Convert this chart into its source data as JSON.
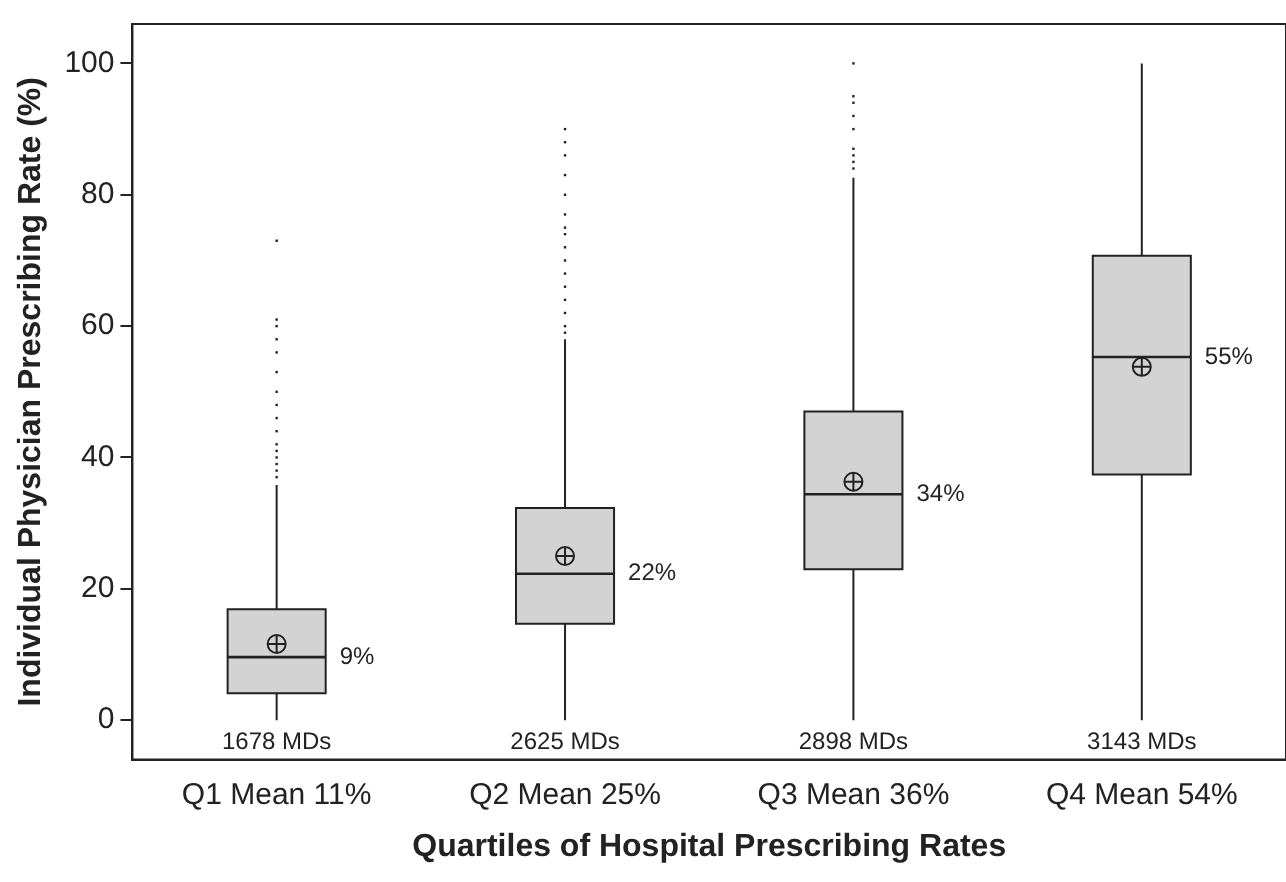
{
  "chart_data": {
    "type": "box",
    "xlabel": "Quartiles of Hospital Prescribing Rates",
    "ylabel": "Individual Physician Prescribing Rate (%)",
    "categories": [
      "Q1 Mean 11%",
      "Q2 Mean 25%",
      "Q3 Mean 36%",
      "Q4 Mean 54%"
    ],
    "boxes": [
      {
        "low": 0,
        "q1": 4.1,
        "median": 9.6,
        "q3": 16.9,
        "high": 35.8,
        "mean": 11.6,
        "outliers": [
          37,
          38,
          39,
          40,
          41,
          42,
          44,
          46,
          48,
          50,
          53,
          56,
          58,
          60,
          61,
          73
        ]
      },
      {
        "low": 0,
        "q1": 14.7,
        "median": 22.3,
        "q3": 32.3,
        "high": 58,
        "mean": 25,
        "outliers": [
          59,
          60,
          62,
          64,
          66,
          68,
          70,
          72,
          74,
          75,
          77,
          80,
          83,
          86,
          88,
          90
        ]
      },
      {
        "low": 0,
        "q1": 23,
        "median": 34.4,
        "q3": 47,
        "high": 82.6,
        "mean": 36.3,
        "outliers": [
          84,
          85,
          86,
          87,
          90,
          92,
          94,
          95,
          100
        ]
      },
      {
        "low": 0,
        "q1": 37.4,
        "median": 55.3,
        "q3": 70.7,
        "high": 100,
        "mean": 53.8
      }
    ],
    "color": "#d3d3d3",
    "ylim": [
      -6,
      106
    ],
    "yticks": [
      0,
      20,
      40,
      60,
      80,
      100
    ],
    "annotations": [
      {
        "text": "9%",
        "x": "Q1 Mean 11%",
        "y": 9.6
      },
      {
        "text": "22%",
        "x": "Q2 Mean 25%",
        "y": 22.3
      },
      {
        "text": "34%",
        "x": "Q3 Mean 36%",
        "y": 34.4
      },
      {
        "text": "55%",
        "x": "Q4 Mean 54%",
        "y": 55.3
      },
      "1678 MDs",
      "2625 MDs",
      "2898 MDs",
      "3143 MDs"
    ]
  }
}
